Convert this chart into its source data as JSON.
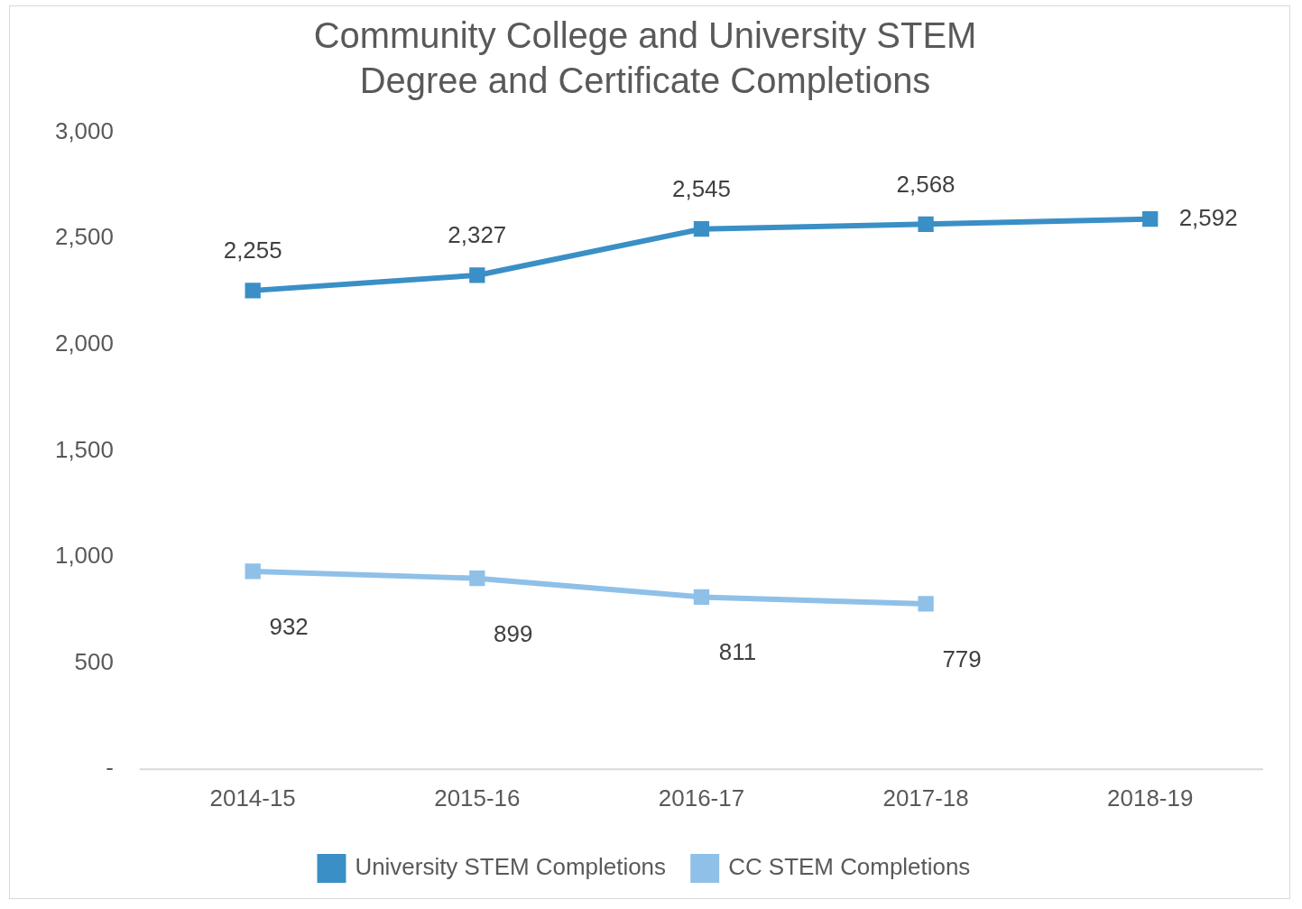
{
  "chart_data": {
    "type": "line",
    "title": "Community College and University STEM Degree and Certificate Completions",
    "categories": [
      "2014-15",
      "2015-16",
      "2016-17",
      "2017-18",
      "2018-19"
    ],
    "series": [
      {
        "name": "University STEM Completions",
        "color": "#3a8fc6",
        "values": [
          2255,
          2327,
          2545,
          2568,
          2592
        ],
        "value_labels": [
          "2,255",
          "2,327",
          "2,545",
          "2,568",
          "2,592"
        ]
      },
      {
        "name": "CC STEM Completions",
        "color": "#8fc0e8",
        "values": [
          932,
          899,
          811,
          779,
          null
        ],
        "value_labels": [
          "932",
          "899",
          "811",
          "779",
          null
        ]
      }
    ],
    "ylim": [
      0,
      3000
    ],
    "yticks": [
      {
        "value": 0,
        "label": "-"
      },
      {
        "value": 500,
        "label": "500"
      },
      {
        "value": 1000,
        "label": "1,000"
      },
      {
        "value": 1500,
        "label": "1,500"
      },
      {
        "value": 2000,
        "label": "2,000"
      },
      {
        "value": 2500,
        "label": "2,500"
      },
      {
        "value": 3000,
        "label": "3,000"
      }
    ],
    "grid": false,
    "legend": "bottom",
    "marker": "square",
    "line_style": "solid"
  }
}
